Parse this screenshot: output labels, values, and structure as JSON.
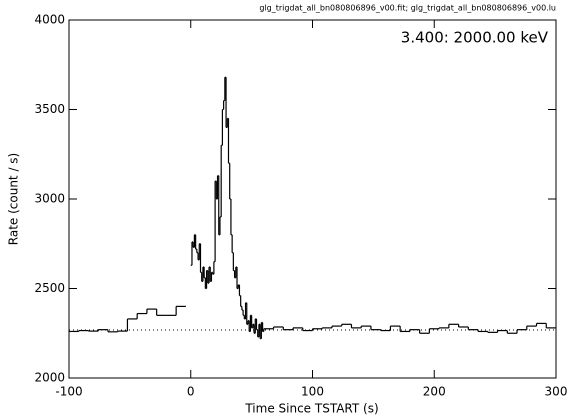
{
  "chart_data": {
    "type": "line",
    "title": "glg_trigdat_all_bn080806896_v00.fit; glg_trigdat_all_bn080806896_v00.lu",
    "annotation": "3.400: 2000.00 keV",
    "x_label": "Time Since TSTART (s)",
    "y_label": "Rate (count / s)",
    "xlim": [
      -100,
      300
    ],
    "ylim": [
      2000,
      4000
    ],
    "xticks": [
      -100,
      0,
      100,
      200,
      300
    ],
    "yticks": [
      2000,
      2500,
      3000,
      3500,
      4000
    ],
    "background": 2268,
    "x": [
      -100,
      -92,
      -84,
      -76,
      -68,
      -60,
      -52,
      -44,
      -36,
      -28,
      -20,
      -12,
      -4,
      0,
      1,
      2,
      3,
      4,
      5,
      6,
      7,
      8,
      9,
      10,
      11,
      12,
      13,
      14,
      15,
      16,
      17,
      18,
      19,
      20,
      21,
      22,
      23,
      24,
      25,
      26,
      27,
      28,
      29,
      30,
      31,
      32,
      33,
      34,
      35,
      36,
      37,
      38,
      39,
      40,
      41,
      42,
      43,
      44,
      45,
      46,
      47,
      48,
      49,
      50,
      51,
      52,
      53,
      54,
      55,
      56,
      57,
      58,
      59,
      60,
      68,
      76,
      84,
      92,
      100,
      108,
      116,
      124,
      132,
      140,
      148,
      156,
      164,
      172,
      180,
      188,
      196,
      204,
      212,
      220,
      228,
      236,
      244,
      252,
      260,
      268,
      276,
      284,
      292
    ],
    "series": [
      {
        "name": "rate",
        "color": "#000000",
        "values": [
          2260,
          2265,
          2262,
          2270,
          2258,
          2262,
          2330,
          2360,
          2385,
          2350,
          2350,
          2400,
          null,
          2630,
          2760,
          2730,
          2800,
          2720,
          2700,
          2660,
          2750,
          2590,
          2540,
          2620,
          2560,
          2500,
          2600,
          2530,
          2620,
          2540,
          2590,
          2580,
          2650,
          3100,
          3000,
          3130,
          2800,
          2900,
          3300,
          3500,
          3550,
          3680,
          3400,
          3450,
          3200,
          3000,
          2800,
          2700,
          2600,
          2560,
          2620,
          2500,
          2520,
          2460,
          2400,
          2380,
          2350,
          2330,
          2420,
          2300,
          2320,
          2260,
          2350,
          2280,
          2300,
          2250,
          2330,
          2270,
          2230,
          2300,
          2220,
          2310,
          2260,
          2275,
          2285,
          2270,
          2280,
          2265,
          2275,
          2280,
          2290,
          2300,
          2280,
          2290,
          2270,
          2265,
          2290,
          2260,
          2270,
          2250,
          2275,
          2280,
          2300,
          2285,
          2270,
          2260,
          2255,
          2265,
          2250,
          2270,
          2290,
          2305,
          2280
        ]
      }
    ]
  }
}
